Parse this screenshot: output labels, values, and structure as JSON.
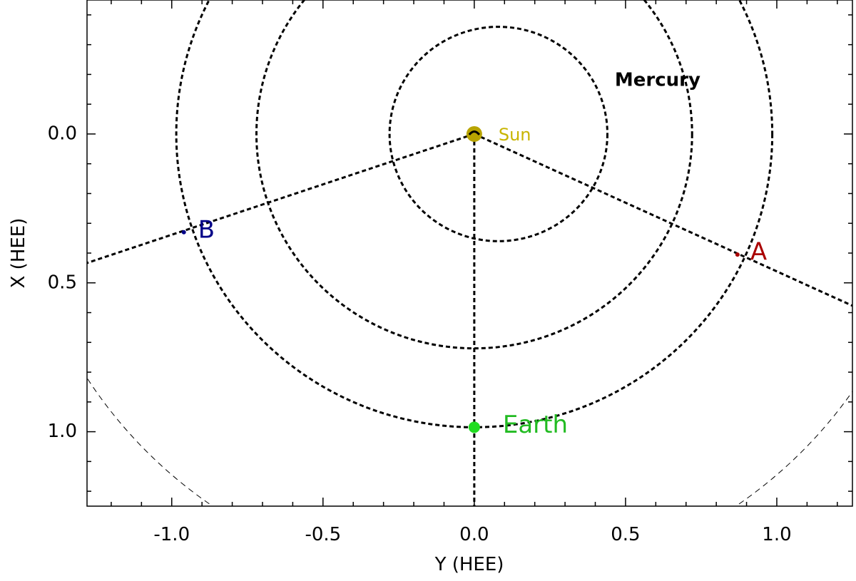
{
  "chart_data": {
    "type": "scatter",
    "title": "",
    "xlabel": "Y (HEE)",
    "ylabel": "X (HEE)",
    "xlim": [
      -1.28,
      1.25
    ],
    "ylim": [
      -0.45,
      1.25
    ],
    "y_inverted": true,
    "xticks": [
      -1.0,
      -0.5,
      0.0,
      0.5,
      1.0
    ],
    "xtick_labels": [
      "-1.0",
      "-0.5",
      "0.0",
      "0.5",
      "1.0"
    ],
    "yticks": [
      0.0,
      0.5,
      1.0
    ],
    "ytick_labels": [
      "0.0",
      "0.5",
      "1.0"
    ],
    "grid": false,
    "bodies": [
      {
        "name": "Sun",
        "y": 0.0,
        "x": 0.0,
        "color": "#b8a400",
        "label_color": "#c8b400"
      },
      {
        "name": "Earth",
        "y": 0.0,
        "x": 0.985,
        "color": "#22dd22",
        "label_color": "#22bb22"
      },
      {
        "name": "A",
        "y": 0.87,
        "x": 0.405,
        "color": "#aa0000",
        "label_color": "#aa0000"
      },
      {
        "name": "B",
        "y": -0.96,
        "x": 0.33,
        "color": "#000088",
        "label_color": "#000088"
      }
    ],
    "annotations": [
      {
        "text": "Mercury",
        "y": 0.5,
        "x": -0.18,
        "color": "#000000"
      }
    ],
    "orbits": [
      {
        "name": "Mercury orbit",
        "center_y": 0.08,
        "center_x": 0.0,
        "radius": 0.36
      },
      {
        "name": "Venus orbit",
        "center_y": 0.0,
        "center_x": 0.0,
        "radius": 0.72
      },
      {
        "name": "Earth orbit",
        "center_y": 0.0,
        "center_x": 0.0,
        "radius": 0.985
      },
      {
        "name": "Outer orbit",
        "center_y": 0.0,
        "center_x": 0.0,
        "radius": 1.52
      }
    ],
    "radial_lines": [
      {
        "name": "sun-earth-line",
        "to_y": 0.0,
        "to_x": 1.3
      },
      {
        "name": "sun-a-line",
        "to_y": 1.3,
        "to_x": 0.6
      },
      {
        "name": "sun-b-line",
        "to_y": -1.3,
        "to_x": 0.44
      }
    ]
  }
}
